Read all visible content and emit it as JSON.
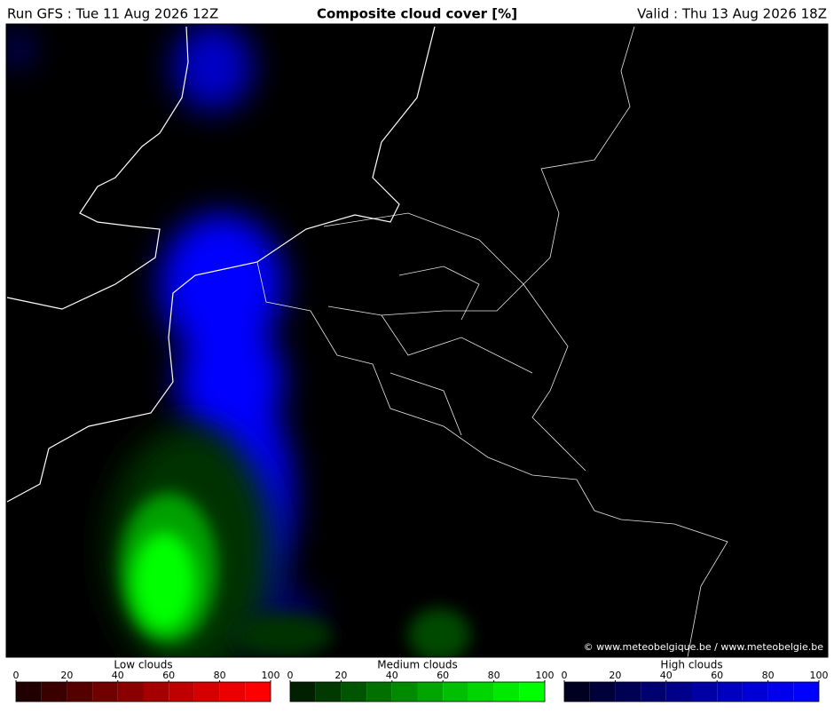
{
  "header": {
    "run": "Run GFS : Tue 11 Aug 2026 12Z",
    "title": "Composite cloud cover [%]",
    "valid": "Valid : Thu 13 Aug 2026 18Z"
  },
  "copyright": "© www.meteobelgique.be / www.meteobelgie.be",
  "legends": [
    {
      "title": "Low clouds",
      "ticks": [
        0,
        20,
        40,
        60,
        80,
        100
      ],
      "colors": [
        "#200000",
        "#3a0000",
        "#550000",
        "#700000",
        "#8a0000",
        "#a50000",
        "#bf0000",
        "#d50000",
        "#ea0000",
        "#ff0000"
      ]
    },
    {
      "title": "Medium clouds",
      "ticks": [
        0,
        20,
        40,
        60,
        80,
        100
      ],
      "colors": [
        "#002000",
        "#003a00",
        "#005500",
        "#007000",
        "#008a00",
        "#00a500",
        "#00bf00",
        "#00d500",
        "#00ea00",
        "#00ff00"
      ]
    },
    {
      "title": "High clouds",
      "ticks": [
        0,
        20,
        40,
        60,
        80,
        100
      ],
      "colors": [
        "#000020",
        "#00003a",
        "#000055",
        "#000070",
        "#00008a",
        "#0000a5",
        "#0000bf",
        "#0000d5",
        "#0000ea",
        "#0000ff"
      ]
    }
  ]
}
